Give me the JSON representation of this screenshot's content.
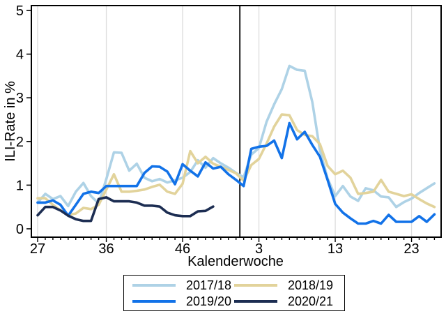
{
  "chart_data": {
    "type": "line",
    "title": "",
    "xlabel": "Kalenderwoche",
    "ylabel": "ILI-Rate in %",
    "ylim": [
      0,
      5
    ],
    "grid": "vertical-only",
    "legend_position": "bottom-center-framed",
    "colors": {
      "grid": "#dcdcdc",
      "axis": "#000000",
      "divider": "#000000",
      "background": "#ffffff"
    },
    "yaxis": {
      "ticks": [
        0,
        1,
        2,
        3,
        4,
        5
      ]
    },
    "xaxis": {
      "weeks": [
        27,
        28,
        29,
        30,
        31,
        32,
        33,
        34,
        35,
        36,
        37,
        38,
        39,
        40,
        41,
        42,
        43,
        44,
        45,
        46,
        47,
        48,
        49,
        50,
        51,
        52,
        53,
        1,
        2,
        3,
        4,
        5,
        6,
        7,
        8,
        9,
        10,
        11,
        12,
        13,
        14,
        15,
        16,
        17,
        18,
        19,
        20,
        21,
        22,
        23,
        24,
        25,
        26
      ],
      "tick_labels": [
        "27",
        "36",
        "46",
        "3",
        "13",
        "23"
      ],
      "tick_indices": [
        0,
        9,
        19,
        29,
        39,
        49
      ],
      "minor_ticks": "every week"
    },
    "divider": {
      "meaning": "year boundary between week 53 and week 1",
      "x_index": 26.5
    },
    "series": [
      {
        "name": "2017/18",
        "color": "#aed2e6",
        "start_index": 0,
        "values": [
          0.6,
          0.8,
          0.68,
          0.75,
          0.52,
          0.85,
          1.05,
          0.75,
          0.58,
          1.14,
          1.75,
          1.74,
          1.33,
          1.49,
          1.17,
          1.09,
          1.14,
          1.06,
          1.11,
          1.17,
          1.3,
          1.57,
          1.4,
          1.62,
          1.5,
          1.4,
          1.28,
          1.18,
          1.7,
          1.85,
          2.45,
          2.85,
          3.2,
          3.73,
          3.64,
          3.62,
          2.9,
          1.8,
          1.15,
          0.75,
          0.98,
          0.74,
          0.64,
          0.93,
          0.88,
          0.74,
          0.72,
          0.5,
          0.61,
          0.69,
          0.82,
          0.93,
          1.04
        ]
      },
      {
        "name": "2018/19",
        "color": "#e2d39b",
        "start_index": 0,
        "values": [
          0.7,
          0.7,
          0.55,
          0.42,
          0.32,
          0.35,
          0.48,
          0.45,
          0.55,
          0.9,
          1.25,
          0.85,
          0.85,
          0.87,
          0.9,
          0.96,
          1.01,
          0.85,
          0.8,
          1.03,
          1.78,
          1.5,
          1.65,
          1.49,
          1.42,
          1.35,
          1.27,
          1.1,
          1.46,
          1.6,
          1.95,
          2.34,
          2.62,
          2.6,
          2.26,
          2.15,
          2.12,
          1.94,
          1.44,
          1.25,
          1.33,
          1.17,
          0.8,
          0.82,
          0.85,
          1.12,
          0.85,
          0.8,
          0.75,
          0.79,
          0.68,
          0.58,
          0.5
        ]
      },
      {
        "name": "2019/20",
        "color": "#1272e8",
        "start_index": 0,
        "values": [
          0.6,
          0.6,
          0.65,
          0.55,
          0.3,
          0.55,
          0.8,
          0.85,
          0.82,
          0.98,
          0.98,
          0.98,
          0.98,
          0.98,
          1.28,
          1.43,
          1.42,
          1.31,
          1.02,
          1.48,
          1.33,
          1.2,
          1.52,
          1.38,
          1.42,
          1.25,
          1.12,
          0.98,
          1.83,
          1.88,
          1.9,
          2.02,
          1.62,
          2.42,
          2.05,
          2.22,
          1.92,
          1.65,
          1.12,
          0.57,
          0.37,
          0.24,
          0.12,
          0.12,
          0.18,
          0.12,
          0.32,
          0.16,
          0.16,
          0.16,
          0.29,
          0.16,
          0.33
        ]
      },
      {
        "name": "2020/21",
        "color": "#1c2d52",
        "start_index": 0,
        "values": [
          0.31,
          0.5,
          0.5,
          0.42,
          0.3,
          0.22,
          0.18,
          0.18,
          0.68,
          0.72,
          0.63,
          0.63,
          0.63,
          0.6,
          0.53,
          0.53,
          0.51,
          0.37,
          0.31,
          0.29,
          0.29,
          0.4,
          0.41,
          0.51
        ]
      }
    ]
  },
  "legend": {
    "entries": [
      {
        "label": "2017/18"
      },
      {
        "label": "2018/19"
      },
      {
        "label": "2019/20"
      },
      {
        "label": "2020/21"
      }
    ]
  }
}
